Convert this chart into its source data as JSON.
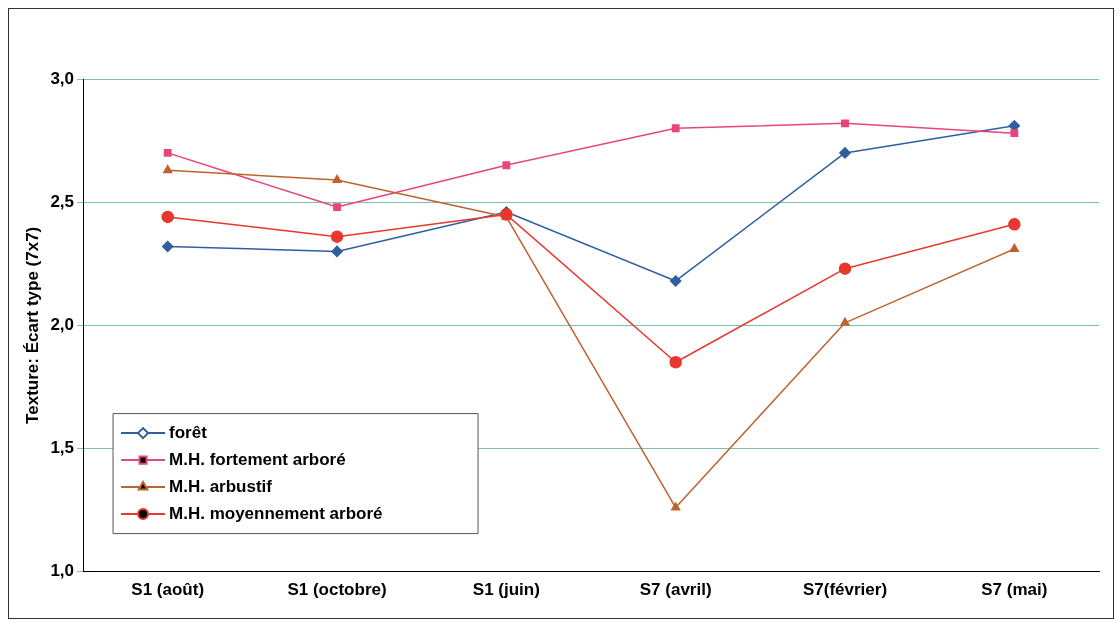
{
  "chart_data": {
    "type": "line",
    "ylabel": "Texture: Écart type (7x7)",
    "categories": [
      "S1 (août)",
      "S1 (octobre)",
      "S1 (juin)",
      "S7 (avril)",
      "S7(février)",
      "S7 (mai)"
    ],
    "series": [
      {
        "name": "forêt",
        "color": "#2f5f9e",
        "marker": "diamond",
        "values": [
          2.32,
          2.3,
          2.46,
          2.18,
          2.7,
          2.81
        ]
      },
      {
        "name": "M.H. fortement arboré",
        "color": "#e8457a",
        "marker": "square",
        "values": [
          2.7,
          2.48,
          2.65,
          2.8,
          2.82,
          2.78
        ]
      },
      {
        "name": "M.H. arbustif",
        "color": "#c0622f",
        "marker": "triangle",
        "values": [
          2.63,
          2.59,
          2.44,
          1.26,
          2.01,
          2.31
        ]
      },
      {
        "name": "M.H. moyennement arboré",
        "color": "#e8372e",
        "marker": "circle",
        "values": [
          2.44,
          2.36,
          2.45,
          1.85,
          2.23,
          2.41
        ]
      }
    ],
    "ylim": [
      1,
      3
    ],
    "yticks": [
      {
        "value": 1,
        "label": "1,0"
      },
      {
        "value": 1.5,
        "label": "1,5"
      },
      {
        "value": 2,
        "label": "2,0"
      },
      {
        "value": 2.5,
        "label": "2,5"
      },
      {
        "value": 3,
        "label": "3,0"
      }
    ],
    "grid": "y",
    "legend": "bottom left"
  }
}
